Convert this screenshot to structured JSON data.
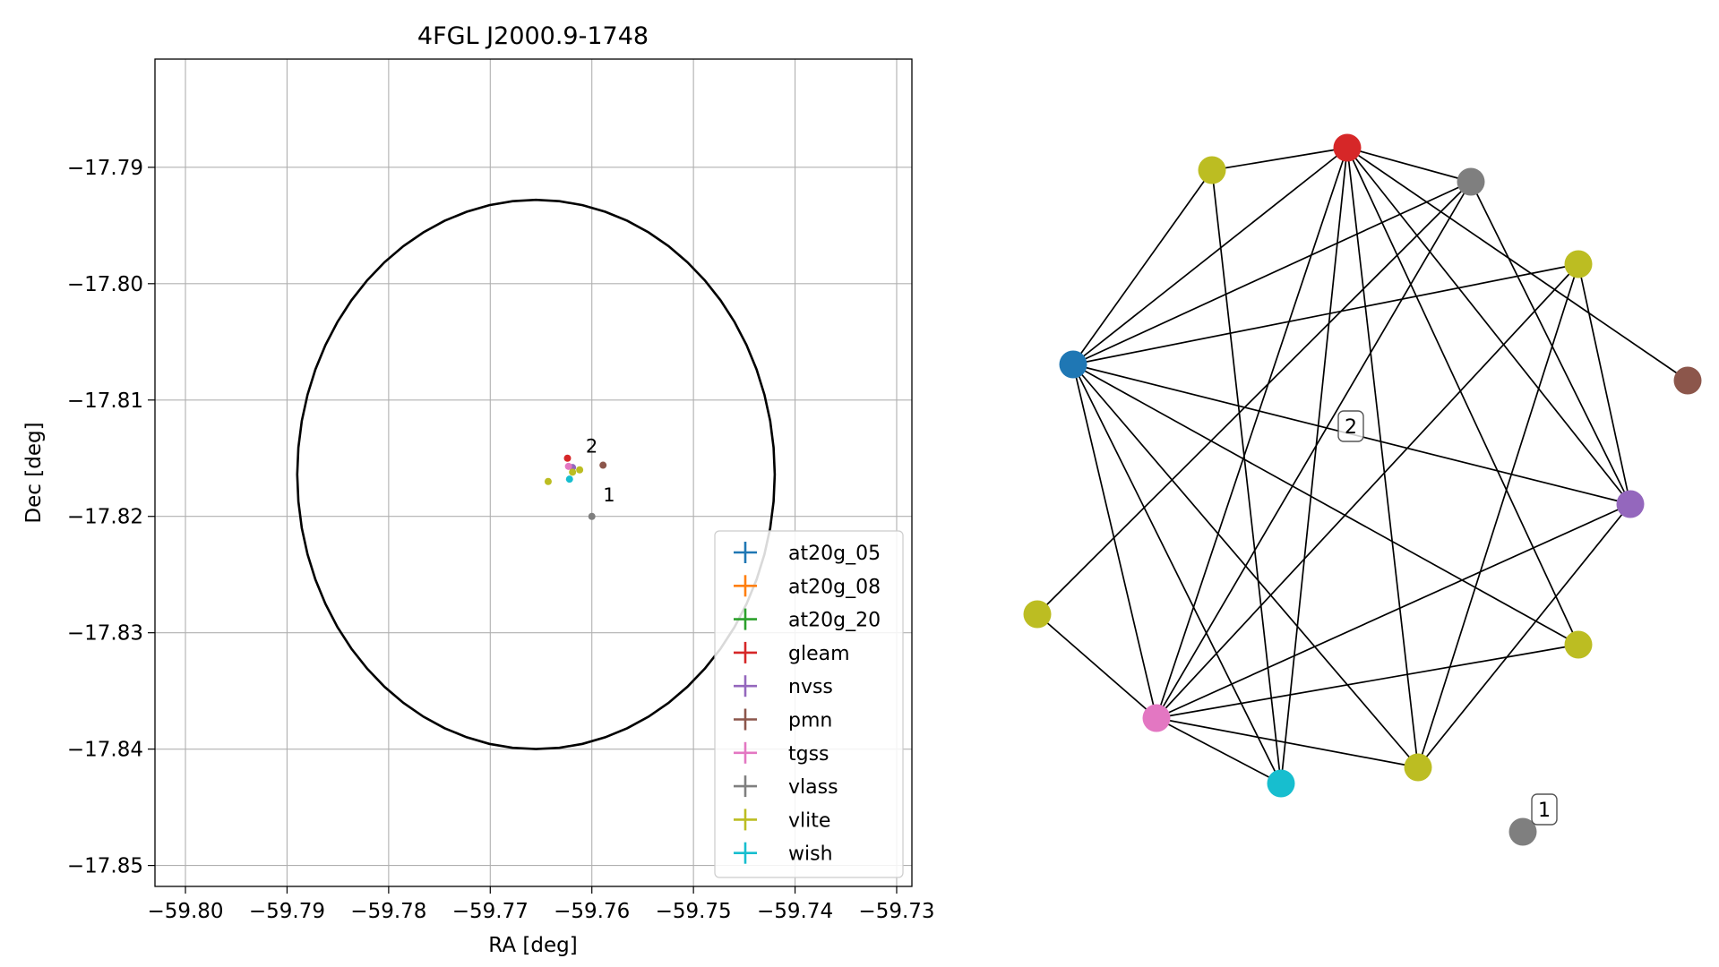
{
  "chart_data": [
    {
      "type": "scatter",
      "title": "4FGL J2000.9-1748",
      "xlabel": "RA [deg]",
      "ylabel": "Dec [deg]",
      "xlim": [
        -59.803,
        -59.7285
      ],
      "ylim": [
        -17.8518,
        -17.7807
      ],
      "x_ticks": [
        -59.8,
        -59.79,
        -59.78,
        -59.77,
        -59.76,
        -59.75,
        -59.74,
        -59.73
      ],
      "x_tick_labels": [
        "−59.80",
        "−59.79",
        "−59.78",
        "−59.77",
        "−59.76",
        "−59.75",
        "−59.74",
        "−59.73"
      ],
      "y_ticks": [
        -17.79,
        -17.8,
        -17.81,
        -17.82,
        -17.83,
        -17.84,
        -17.85
      ],
      "y_tick_labels": [
        "−17.79",
        "−17.80",
        "−17.81",
        "−17.82",
        "−17.83",
        "−17.84",
        "−17.85"
      ],
      "grid": true,
      "legend_position": "lower-right",
      "error_ellipse": {
        "center_ra": -59.7655,
        "center_dec": -17.8164,
        "semi_ra": 0.0235,
        "semi_dec": 0.0236
      },
      "series": [
        {
          "name": "at20g_05",
          "color": "#1f77b4",
          "points": []
        },
        {
          "name": "at20g_08",
          "color": "#ff7f0e",
          "points": []
        },
        {
          "name": "at20g_20",
          "color": "#2ca02c",
          "points": []
        },
        {
          "name": "gleam",
          "color": "#d62728",
          "points": [
            [
              -59.7624,
              -17.815
            ]
          ]
        },
        {
          "name": "nvss",
          "color": "#9467bd",
          "points": [
            [
              -59.7619,
              -17.8158
            ]
          ]
        },
        {
          "name": "pmn",
          "color": "#8c564b",
          "points": [
            [
              -59.7589,
              -17.8156
            ]
          ]
        },
        {
          "name": "tgss",
          "color": "#e377c2",
          "points": [
            [
              -59.7623,
              -17.8157
            ]
          ]
        },
        {
          "name": "vlass",
          "color": "#7f7f7f",
          "points": [
            [
              -59.76,
              -17.82
            ]
          ]
        },
        {
          "name": "vlite",
          "color": "#bcbd22",
          "points": [
            [
              -59.7643,
              -17.817
            ],
            [
              -59.7619,
              -17.8162
            ],
            [
              -59.7612,
              -17.816
            ]
          ]
        },
        {
          "name": "wish",
          "color": "#17becf",
          "points": [
            [
              -59.7622,
              -17.8168
            ]
          ]
        }
      ],
      "annotations": [
        {
          "text": "2",
          "ra": -59.7606,
          "dec": -17.8145
        },
        {
          "text": "1",
          "ra": -59.7589,
          "dec": -17.8187
        }
      ]
    },
    {
      "type": "network",
      "nodes": [
        {
          "id": "n0",
          "color": "#bcbd22"
        },
        {
          "id": "n1",
          "color": "#d62728"
        },
        {
          "id": "n2",
          "color": "#7f7f7f"
        },
        {
          "id": "n3",
          "color": "#bcbd22"
        },
        {
          "id": "n4",
          "color": "#1f77b4"
        },
        {
          "id": "n5",
          "color": "#8c564b"
        },
        {
          "id": "n6",
          "color": "#9467bd"
        },
        {
          "id": "n7",
          "color": "#bcbd22"
        },
        {
          "id": "n8",
          "color": "#bcbd22"
        },
        {
          "id": "n9",
          "color": "#e377c2"
        },
        {
          "id": "n10",
          "color": "#17becf"
        },
        {
          "id": "n11",
          "color": "#bcbd22"
        },
        {
          "id": "n12",
          "color": "#7f7f7f"
        }
      ],
      "edges": [
        [
          "n0",
          "n1"
        ],
        [
          "n0",
          "n4"
        ],
        [
          "n0",
          "n10"
        ],
        [
          "n1",
          "n4"
        ],
        [
          "n1",
          "n9"
        ],
        [
          "n1",
          "n11"
        ],
        [
          "n1",
          "n10"
        ],
        [
          "n1",
          "n5"
        ],
        [
          "n1",
          "n6"
        ],
        [
          "n1",
          "n7"
        ],
        [
          "n1",
          "n2"
        ],
        [
          "n2",
          "n4"
        ],
        [
          "n2",
          "n6"
        ],
        [
          "n2",
          "n9"
        ],
        [
          "n3",
          "n4"
        ],
        [
          "n3",
          "n9"
        ],
        [
          "n3",
          "n6"
        ],
        [
          "n3",
          "n11"
        ],
        [
          "n4",
          "n6"
        ],
        [
          "n4",
          "n7"
        ],
        [
          "n4",
          "n9"
        ],
        [
          "n4",
          "n10"
        ],
        [
          "n4",
          "n11"
        ],
        [
          "n6",
          "n9"
        ],
        [
          "n6",
          "n11"
        ],
        [
          "n7",
          "n9"
        ],
        [
          "n8",
          "n2"
        ],
        [
          "n8",
          "n9"
        ],
        [
          "n9",
          "n10"
        ],
        [
          "n9",
          "n11"
        ]
      ],
      "labels": [
        {
          "text": "2"
        },
        {
          "text": "1"
        }
      ]
    }
  ]
}
